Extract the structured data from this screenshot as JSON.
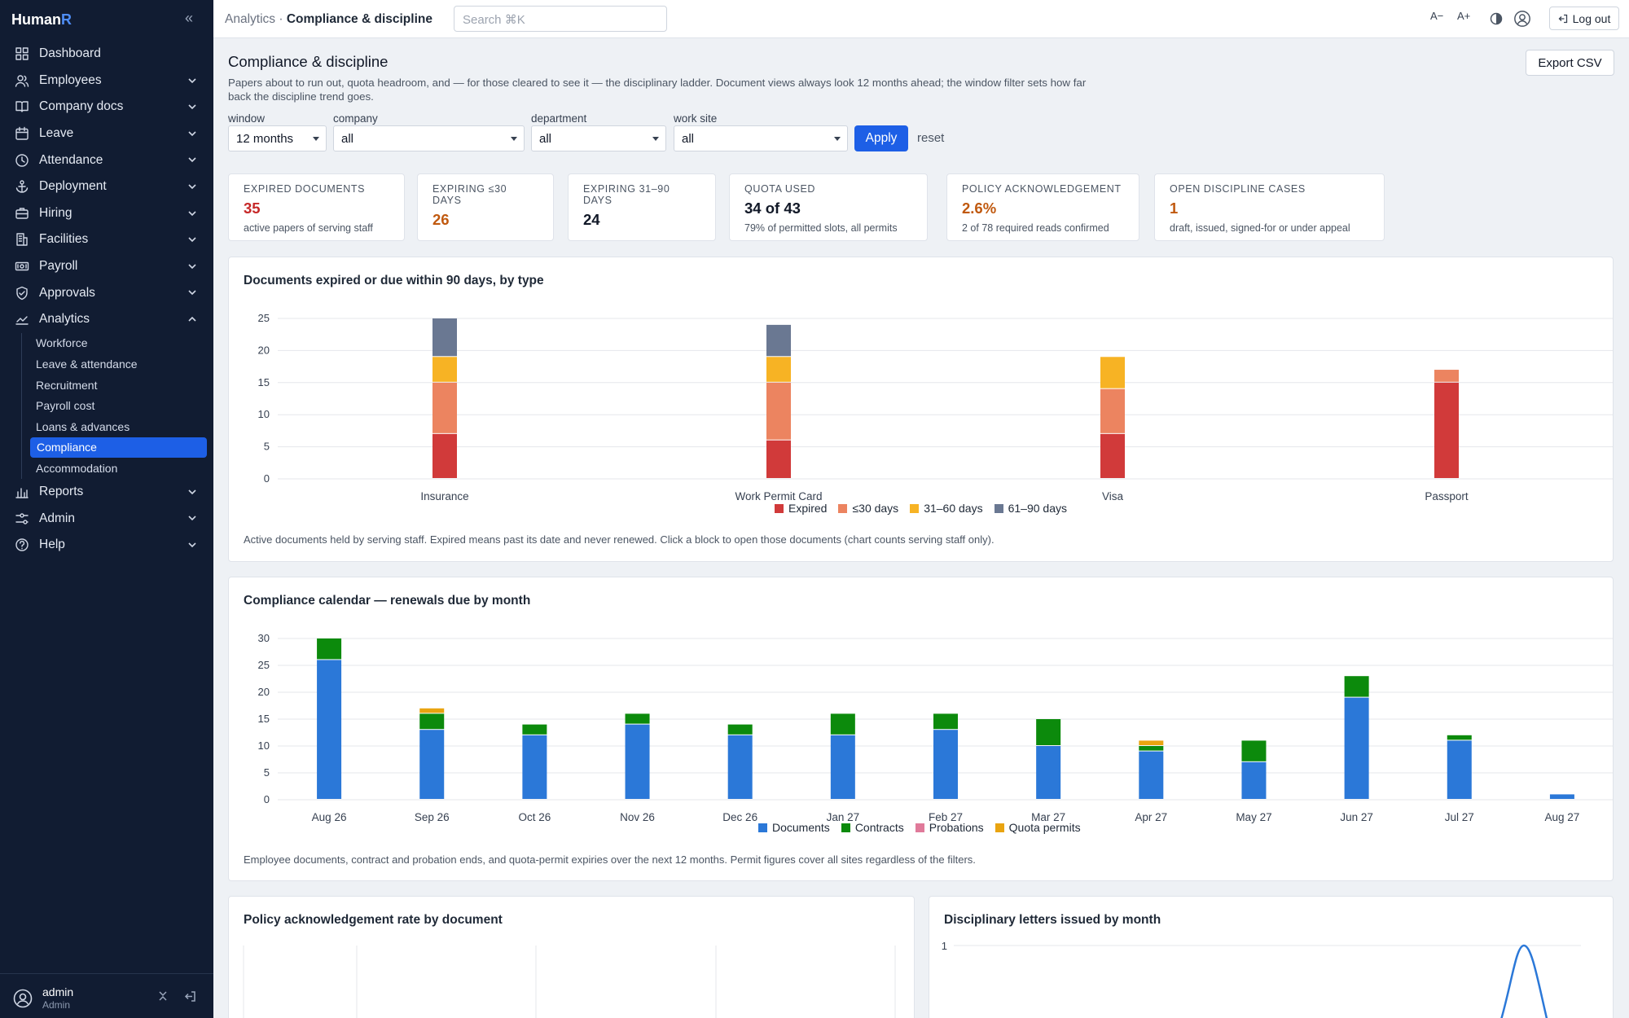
{
  "app": {
    "brand_main": "Human",
    "brand_accent": "R"
  },
  "sidebar": {
    "items": [
      {
        "label": "Dashboard",
        "icon": "grid-icon"
      },
      {
        "label": "Employees",
        "icon": "users-icon"
      },
      {
        "label": "Company docs",
        "icon": "book-icon"
      },
      {
        "label": "Leave",
        "icon": "calendar-icon"
      },
      {
        "label": "Attendance",
        "icon": "clock-icon"
      },
      {
        "label": "Deployment",
        "icon": "anchor-icon"
      },
      {
        "label": "Hiring",
        "icon": "briefcase-icon"
      },
      {
        "label": "Facilities",
        "icon": "building-icon"
      },
      {
        "label": "Payroll",
        "icon": "money-icon"
      },
      {
        "label": "Approvals",
        "icon": "shield-check-icon"
      },
      {
        "label": "Analytics",
        "icon": "trend-icon"
      }
    ],
    "analytics_sub": [
      "Workforce",
      "Leave & attendance",
      "Recruitment",
      "Payroll cost",
      "Loans & advances",
      "Compliance",
      "Accommodation"
    ],
    "active_sub": "Compliance",
    "bottom_items": [
      {
        "label": "Reports",
        "icon": "bar-chart-icon"
      },
      {
        "label": "Admin",
        "icon": "sliders-icon"
      },
      {
        "label": "Help",
        "icon": "help-icon"
      }
    ],
    "user": {
      "name": "admin",
      "role": "Admin"
    }
  },
  "topbar": {
    "crumb_parent": "Analytics",
    "crumb_sep": "·",
    "crumb_current": "Compliance & discipline",
    "search_placeholder": "Search  ⌘K",
    "font_smaller": "A−",
    "font_larger": "A+",
    "logout": "Log out"
  },
  "page": {
    "title": "Compliance & discipline",
    "description": "Papers about to run out, quota headroom, and — for those cleared to see it — the disciplinary ladder. Document views always look 12 months ahead; the window filter sets how far back the discipline trend goes.",
    "export": "Export CSV"
  },
  "filters": {
    "window": {
      "label": "window",
      "value": "12 months"
    },
    "company": {
      "label": "company",
      "value": "all"
    },
    "department": {
      "label": "department",
      "value": "all"
    },
    "site": {
      "label": "work site",
      "value": "all"
    },
    "apply": "Apply",
    "reset": "reset"
  },
  "kpis": [
    {
      "label": "EXPIRED DOCUMENTS",
      "value": "35",
      "sub": "active papers of serving staff",
      "color": "#c62828"
    },
    {
      "label": "EXPIRING ≤30 DAYS",
      "value": "26",
      "sub": "",
      "color": "#c0590f"
    },
    {
      "label": "EXPIRING 31–90 DAYS",
      "value": "24",
      "sub": "",
      "color": "#111827"
    },
    {
      "label": "QUOTA USED",
      "value": "34 of 43",
      "sub": "79% of permitted slots, all permits",
      "color": "#111827"
    },
    {
      "label": "POLICY ACKNOWLEDGEMENT",
      "value": "2.6%",
      "sub": "2 of 78 required reads confirmed",
      "color": "#c0590f"
    },
    {
      "label": "OPEN DISCIPLINE CASES",
      "value": "1",
      "sub": "draft, issued, signed-for or under appeal",
      "color": "#c0590f"
    }
  ],
  "chart1_card": {
    "title": "Documents expired or due within 90 days, by type",
    "note": "Active documents held by serving staff. Expired means past its date and never renewed. Click a block to open those documents (chart counts serving staff only)."
  },
  "chart2_card": {
    "title": "Compliance calendar — renewals due by month",
    "note": "Employee documents, contract and probation ends, and quota-permit expiries over the next 12 months. Permit figures cover all sites regardless of the filters."
  },
  "chart3_card": {
    "title": "Policy acknowledgement rate by document"
  },
  "chart4_card": {
    "title": "Disciplinary letters issued by month"
  },
  "chart_data": [
    {
      "type": "bar",
      "stacked": true,
      "title": "Documents expired or due within 90 days, by type",
      "categories": [
        "Insurance",
        "Work Permit Card",
        "Visa",
        "Passport"
      ],
      "series": [
        {
          "name": "Expired",
          "color": "#d13a3a",
          "values": [
            7,
            6,
            7,
            15
          ]
        },
        {
          "name": "≤30 days",
          "color": "#ec8460",
          "values": [
            8,
            9,
            7,
            2
          ]
        },
        {
          "name": "31–60 days",
          "color": "#f7b324",
          "values": [
            4,
            4,
            5,
            0
          ]
        },
        {
          "name": "61–90 days",
          "color": "#6a7892",
          "values": [
            6,
            5,
            0,
            0
          ]
        }
      ],
      "ylim": [
        0,
        25
      ],
      "yticks": [
        0,
        5,
        10,
        15,
        20,
        25
      ],
      "grid": true,
      "legend": "bottom"
    },
    {
      "type": "bar",
      "stacked": true,
      "title": "Compliance calendar — renewals due by month",
      "categories": [
        "Aug 26",
        "Sep 26",
        "Oct 26",
        "Nov 26",
        "Dec 26",
        "Jan 27",
        "Feb 27",
        "Mar 27",
        "Apr 27",
        "May 27",
        "Jun 27",
        "Jul 27",
        "Aug 27"
      ],
      "series": [
        {
          "name": "Documents",
          "color": "#2b78d8",
          "values": [
            26,
            13,
            12,
            14,
            12,
            12,
            13,
            10,
            9,
            7,
            19,
            11,
            1
          ]
        },
        {
          "name": "Contracts",
          "color": "#0c8a0c",
          "values": [
            4,
            3,
            2,
            2,
            2,
            4,
            3,
            5,
            1,
            4,
            4,
            1,
            0
          ]
        },
        {
          "name": "Probations",
          "color": "#e07a9a",
          "values": [
            0,
            0,
            0,
            0,
            0,
            0,
            0,
            0,
            0,
            0,
            0,
            0,
            0
          ]
        },
        {
          "name": "Quota permits",
          "color": "#e9a410",
          "values": [
            0,
            1,
            0,
            0,
            0,
            0,
            0,
            0,
            1,
            0,
            0,
            0,
            0
          ]
        }
      ],
      "ylim": [
        0,
        30
      ],
      "yticks": [
        0,
        5,
        10,
        15,
        20,
        25,
        30
      ],
      "grid": true,
      "legend": "bottom"
    },
    {
      "type": "bar",
      "title": "Policy acknowledgement rate by document",
      "grid": true
    },
    {
      "type": "line",
      "title": "Disciplinary letters issued by month",
      "yticks": [
        1
      ],
      "series_color": "#2b78d8",
      "grid": true
    }
  ]
}
